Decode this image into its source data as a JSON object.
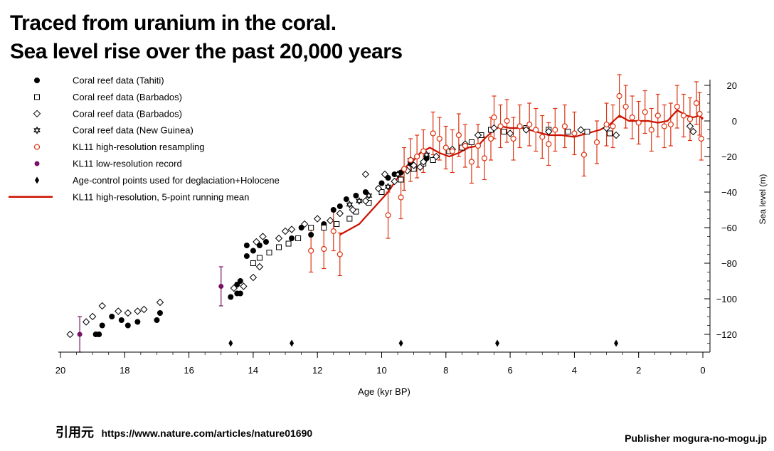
{
  "title_line1": "Traced from uranium in the coral.",
  "title_line2": "Sea level rise over the past 20,000 years",
  "source_label": "引用元",
  "source_url": "https://www.nature.com/articles/nature01690",
  "publisher": "Publisher mogura-no-mogu.jp",
  "chart_data": {
    "type": "scatter",
    "title": "",
    "xlabel": "Age (kyr BP)",
    "ylabel": "Sea level (m)",
    "xlim": [
      20,
      0
    ],
    "ylim": [
      -130,
      20
    ],
    "x_reversed": true,
    "y_axis_side": "right",
    "legend_position": "top-left",
    "x_ticks": [
      20,
      18,
      16,
      14,
      12,
      10,
      8,
      6,
      4,
      2,
      0
    ],
    "y_ticks": [
      20,
      0,
      -20,
      -40,
      -60,
      -80,
      -100,
      -120
    ],
    "colors": {
      "red": "#dd3311",
      "dark_red": "#cc1100",
      "purple": "#771166"
    },
    "series": [
      {
        "name": "Coral reef data (Tahiti)",
        "marker": "filled-circle",
        "points": [
          [
            18.9,
            -120
          ],
          [
            18.8,
            -120
          ],
          [
            18.7,
            -115
          ],
          [
            18.4,
            -110
          ],
          [
            18.1,
            -112
          ],
          [
            17.9,
            -115
          ],
          [
            17.6,
            -113
          ],
          [
            17.0,
            -112
          ],
          [
            16.9,
            -108
          ],
          [
            14.7,
            -99
          ],
          [
            14.5,
            -97
          ],
          [
            14.4,
            -97
          ],
          [
            14.5,
            -92
          ],
          [
            14.4,
            -90
          ],
          [
            14.2,
            -76
          ],
          [
            14.0,
            -73
          ],
          [
            14.2,
            -70
          ],
          [
            13.8,
            -70
          ],
          [
            13.6,
            -68
          ],
          [
            12.8,
            -66
          ],
          [
            12.5,
            -60
          ],
          [
            12.2,
            -64
          ],
          [
            11.8,
            -58
          ],
          [
            11.5,
            -50
          ],
          [
            11.3,
            -48
          ],
          [
            11.1,
            -44
          ],
          [
            10.8,
            -42
          ],
          [
            10.5,
            -40
          ],
          [
            10.0,
            -35
          ],
          [
            9.8,
            -32
          ],
          [
            9.6,
            -30
          ],
          [
            9.4,
            -29
          ],
          [
            9.3,
            -27
          ],
          [
            9.1,
            -24
          ],
          [
            8.9,
            -20
          ],
          [
            8.6,
            -21
          ]
        ]
      },
      {
        "name": "Coral reef data (Barbados)",
        "marker": "open-square",
        "points": [
          [
            14.0,
            -80
          ],
          [
            13.8,
            -77
          ],
          [
            13.5,
            -74
          ],
          [
            13.2,
            -71
          ],
          [
            12.9,
            -69
          ],
          [
            12.6,
            -66
          ],
          [
            12.2,
            -60
          ],
          [
            11.8,
            -60
          ],
          [
            11.4,
            -58
          ],
          [
            11.0,
            -55
          ],
          [
            10.8,
            -51
          ],
          [
            10.4,
            -46
          ],
          [
            10.0,
            -40
          ],
          [
            9.4,
            -33
          ],
          [
            9.0,
            -27
          ],
          [
            8.7,
            -24
          ],
          [
            8.4,
            -22
          ],
          [
            7.9,
            -17
          ],
          [
            7.5,
            -15
          ],
          [
            7.2,
            -12
          ],
          [
            6.9,
            -8
          ],
          [
            6.6,
            -5
          ],
          [
            6.2,
            -6
          ],
          [
            5.5,
            -4
          ],
          [
            4.8,
            -5
          ],
          [
            4.2,
            -6
          ],
          [
            3.6,
            -6
          ],
          [
            2.9,
            -7
          ]
        ]
      },
      {
        "name": "Coral reef data (Barbados)",
        "marker": "open-diamond",
        "points": [
          [
            19.7,
            -120
          ],
          [
            19.2,
            -113
          ],
          [
            19.0,
            -110
          ],
          [
            18.7,
            -104
          ],
          [
            18.2,
            -107
          ],
          [
            17.9,
            -108
          ],
          [
            17.6,
            -107
          ],
          [
            17.4,
            -106
          ],
          [
            16.9,
            -102
          ],
          [
            14.6,
            -94
          ],
          [
            14.3,
            -93
          ],
          [
            14.0,
            -88
          ],
          [
            13.8,
            -82
          ],
          [
            13.9,
            -68
          ],
          [
            13.7,
            -65
          ],
          [
            13.2,
            -66
          ],
          [
            13.0,
            -62
          ],
          [
            12.8,
            -61
          ],
          [
            12.4,
            -58
          ],
          [
            12.0,
            -55
          ],
          [
            11.6,
            -56
          ],
          [
            11.3,
            -52
          ],
          [
            10.9,
            -50
          ],
          [
            10.5,
            -45
          ],
          [
            10.1,
            -38
          ],
          [
            9.6,
            -34
          ],
          [
            9.9,
            -30
          ],
          [
            10.5,
            -30
          ],
          [
            9.2,
            -28
          ],
          [
            9.0,
            -25
          ],
          [
            8.8,
            -26
          ],
          [
            8.7,
            -23
          ],
          [
            8.3,
            -20
          ],
          [
            7.8,
            -16
          ],
          [
            7.4,
            -13
          ],
          [
            7.0,
            -8
          ],
          [
            6.5,
            -4
          ],
          [
            6.0,
            -7
          ],
          [
            5.5,
            -5
          ],
          [
            4.8,
            -6
          ],
          [
            3.8,
            -5
          ],
          [
            3.0,
            -4
          ],
          [
            2.7,
            -8
          ],
          [
            0.4,
            -3
          ],
          [
            0.3,
            -6
          ]
        ]
      },
      {
        "name": "Coral reef data (New Guinea)",
        "marker": "star",
        "points": [
          [
            11.0,
            -47
          ],
          [
            10.7,
            -45
          ],
          [
            10.4,
            -42
          ],
          [
            9.8,
            -37
          ],
          [
            9.5,
            -30
          ],
          [
            9.1,
            -22
          ],
          [
            8.6,
            -19
          ]
        ]
      },
      {
        "name": "KL11 high-resolution resampling",
        "marker": "open-circle-red",
        "points": [
          [
            12.2,
            -73,
            12
          ],
          [
            11.8,
            -72,
            11
          ],
          [
            11.5,
            -62,
            11
          ],
          [
            11.3,
            -75,
            12
          ],
          [
            9.8,
            -53,
            13
          ],
          [
            9.4,
            -43,
            12
          ],
          [
            9.3,
            -27,
            12
          ],
          [
            9.1,
            -22,
            12
          ],
          [
            8.9,
            -20,
            12
          ],
          [
            8.7,
            -17,
            12
          ],
          [
            8.4,
            -7,
            12
          ],
          [
            8.2,
            -10,
            12
          ],
          [
            8.0,
            -15,
            12
          ],
          [
            7.8,
            -17,
            12
          ],
          [
            7.6,
            -8,
            12
          ],
          [
            7.4,
            -14,
            12
          ],
          [
            7.2,
            -23,
            12
          ],
          [
            7.0,
            -14,
            12
          ],
          [
            6.8,
            -21,
            12
          ],
          [
            6.6,
            -10,
            12
          ],
          [
            6.5,
            2,
            12
          ],
          [
            6.3,
            -3,
            12
          ],
          [
            6.1,
            0,
            12
          ],
          [
            5.9,
            -10,
            12
          ],
          [
            5.7,
            -3,
            12
          ],
          [
            5.4,
            -2,
            12
          ],
          [
            5.2,
            -5,
            12
          ],
          [
            5.0,
            -9,
            12
          ],
          [
            4.8,
            -13,
            12
          ],
          [
            4.6,
            -5,
            12
          ],
          [
            4.3,
            -3,
            12
          ],
          [
            4.0,
            -7,
            12
          ],
          [
            3.7,
            -19,
            12
          ],
          [
            3.3,
            -12,
            12
          ],
          [
            3.0,
            -2,
            12
          ],
          [
            2.8,
            -3,
            12
          ],
          [
            2.6,
            14,
            12
          ],
          [
            2.4,
            8,
            12
          ],
          [
            2.2,
            2,
            12
          ],
          [
            2.0,
            -1,
            12
          ],
          [
            1.8,
            5,
            12
          ],
          [
            1.6,
            -5,
            12
          ],
          [
            1.4,
            3,
            12
          ],
          [
            1.2,
            -3,
            12
          ],
          [
            1.0,
            -2,
            12
          ],
          [
            0.8,
            8,
            12
          ],
          [
            0.6,
            3,
            12
          ],
          [
            0.4,
            1,
            12
          ],
          [
            0.2,
            10,
            12
          ],
          [
            0.1,
            4,
            12
          ],
          [
            0.05,
            -10,
            12
          ]
        ]
      },
      {
        "name": "KL11 low-resolution record",
        "marker": "filled-circle-purple",
        "points": [
          [
            19.4,
            -120,
            10
          ],
          [
            15.0,
            -93,
            11
          ]
        ]
      },
      {
        "name": "Age-control points used for deglaciation+Holocene",
        "marker": "filled-diamond",
        "points": [
          [
            14.7,
            -125
          ],
          [
            12.8,
            -125
          ],
          [
            9.4,
            -125
          ],
          [
            6.4,
            -125
          ],
          [
            2.7,
            -125
          ]
        ]
      },
      {
        "name": "KL11 high-resolution, 5-point running mean",
        "marker": "line",
        "points": [
          [
            11.3,
            -64
          ],
          [
            10.7,
            -58
          ],
          [
            10.2,
            -48
          ],
          [
            9.8,
            -40
          ],
          [
            9.5,
            -32
          ],
          [
            9.2,
            -25
          ],
          [
            9.0,
            -22
          ],
          [
            8.8,
            -18
          ],
          [
            8.5,
            -15
          ],
          [
            8.2,
            -18
          ],
          [
            7.9,
            -20
          ],
          [
            7.6,
            -18
          ],
          [
            7.3,
            -15
          ],
          [
            7.0,
            -14
          ],
          [
            6.8,
            -10
          ],
          [
            6.5,
            -5
          ],
          [
            6.3,
            -3
          ],
          [
            6.0,
            -4
          ],
          [
            5.6,
            -4
          ],
          [
            5.2,
            -6
          ],
          [
            4.8,
            -8
          ],
          [
            4.4,
            -8
          ],
          [
            4.0,
            -9
          ],
          [
            3.6,
            -7
          ],
          [
            3.2,
            -5
          ],
          [
            2.9,
            -2
          ],
          [
            2.6,
            3
          ],
          [
            2.3,
            0
          ],
          [
            2.0,
            0
          ],
          [
            1.7,
            0
          ],
          [
            1.4,
            -1
          ],
          [
            1.1,
            0
          ],
          [
            0.8,
            6
          ],
          [
            0.5,
            3
          ],
          [
            0.3,
            2
          ],
          [
            0.1,
            3
          ],
          [
            0.0,
            1
          ]
        ]
      }
    ]
  }
}
